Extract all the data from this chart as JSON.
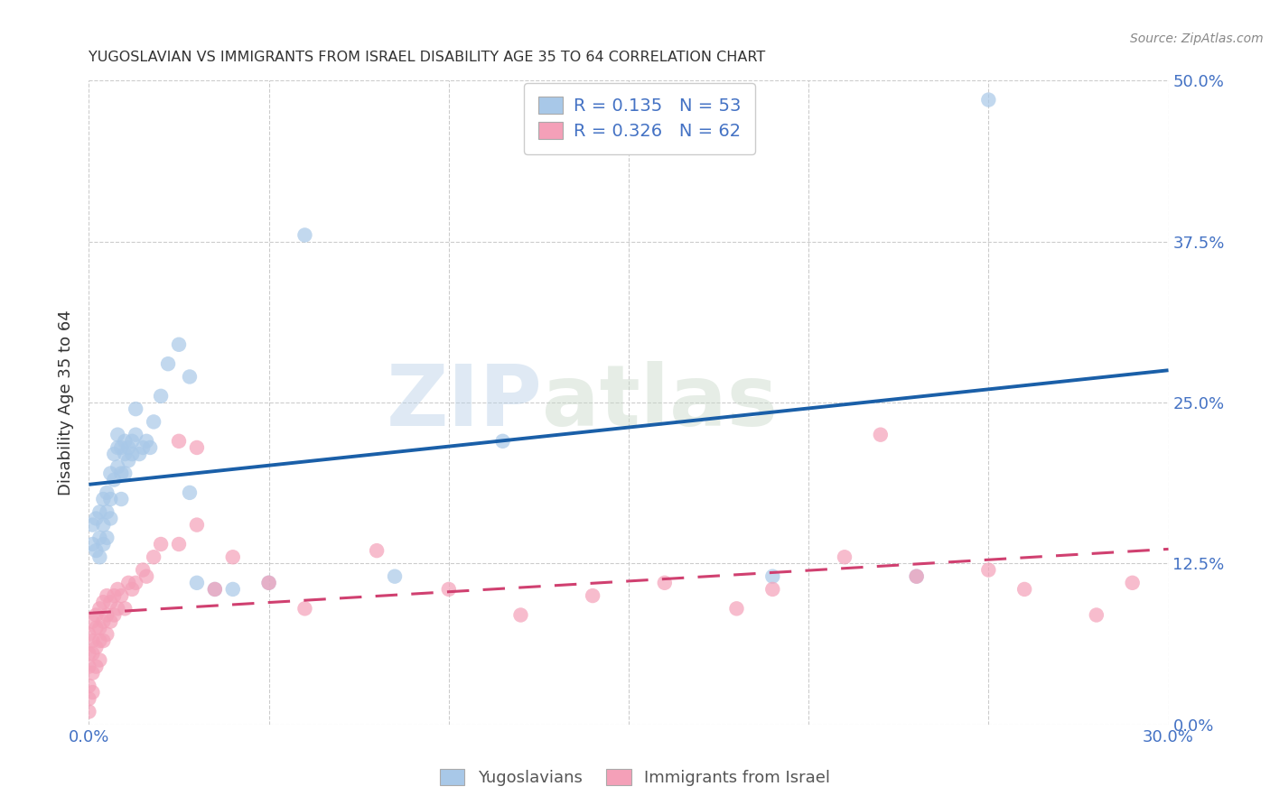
{
  "title": "YUGOSLAVIAN VS IMMIGRANTS FROM ISRAEL DISABILITY AGE 35 TO 64 CORRELATION CHART",
  "source": "Source: ZipAtlas.com",
  "ylabel_label": "Disability Age 35 to 64",
  "xlim": [
    0.0,
    0.3
  ],
  "ylim": [
    0.0,
    0.5
  ],
  "legend_label1": "Yugoslavians",
  "legend_label2": "Immigrants from Israel",
  "R1": 0.135,
  "N1": 53,
  "R2": 0.326,
  "N2": 62,
  "color_blue": "#a8c8e8",
  "color_pink": "#f4a0b8",
  "line_blue": "#1a5fa8",
  "line_pink": "#d04070",
  "watermark_left": "ZIP",
  "watermark_right": "atlas",
  "yugoslav_x": [
    0.001,
    0.001,
    0.002,
    0.002,
    0.003,
    0.003,
    0.003,
    0.004,
    0.004,
    0.004,
    0.005,
    0.005,
    0.005,
    0.006,
    0.006,
    0.006,
    0.007,
    0.007,
    0.008,
    0.008,
    0.008,
    0.009,
    0.009,
    0.009,
    0.01,
    0.01,
    0.01,
    0.011,
    0.011,
    0.012,
    0.012,
    0.013,
    0.013,
    0.014,
    0.015,
    0.016,
    0.017,
    0.018,
    0.02,
    0.022,
    0.025,
    0.028,
    0.06,
    0.085,
    0.115,
    0.19,
    0.23,
    0.25,
    0.028,
    0.04,
    0.05,
    0.03,
    0.035
  ],
  "yugoslav_y": [
    0.155,
    0.14,
    0.16,
    0.135,
    0.165,
    0.145,
    0.13,
    0.175,
    0.155,
    0.14,
    0.18,
    0.165,
    0.145,
    0.195,
    0.175,
    0.16,
    0.21,
    0.19,
    0.225,
    0.215,
    0.2,
    0.215,
    0.195,
    0.175,
    0.22,
    0.21,
    0.195,
    0.215,
    0.205,
    0.22,
    0.21,
    0.245,
    0.225,
    0.21,
    0.215,
    0.22,
    0.215,
    0.235,
    0.255,
    0.28,
    0.295,
    0.27,
    0.38,
    0.115,
    0.22,
    0.115,
    0.115,
    0.485,
    0.18,
    0.105,
    0.11,
    0.11,
    0.105
  ],
  "israel_x": [
    0.0,
    0.0,
    0.0,
    0.0,
    0.0,
    0.0,
    0.001,
    0.001,
    0.001,
    0.001,
    0.001,
    0.002,
    0.002,
    0.002,
    0.002,
    0.003,
    0.003,
    0.003,
    0.003,
    0.004,
    0.004,
    0.004,
    0.005,
    0.005,
    0.005,
    0.006,
    0.006,
    0.007,
    0.007,
    0.008,
    0.008,
    0.009,
    0.01,
    0.011,
    0.012,
    0.013,
    0.015,
    0.016,
    0.018,
    0.02,
    0.025,
    0.03,
    0.03,
    0.04,
    0.05,
    0.06,
    0.08,
    0.1,
    0.12,
    0.14,
    0.16,
    0.18,
    0.19,
    0.21,
    0.22,
    0.23,
    0.25,
    0.26,
    0.28,
    0.29,
    0.025,
    0.035
  ],
  "israel_y": [
    0.07,
    0.055,
    0.045,
    0.03,
    0.02,
    0.01,
    0.08,
    0.065,
    0.055,
    0.04,
    0.025,
    0.085,
    0.075,
    0.06,
    0.045,
    0.09,
    0.075,
    0.065,
    0.05,
    0.095,
    0.08,
    0.065,
    0.1,
    0.085,
    0.07,
    0.095,
    0.08,
    0.1,
    0.085,
    0.105,
    0.09,
    0.1,
    0.09,
    0.11,
    0.105,
    0.11,
    0.12,
    0.115,
    0.13,
    0.14,
    0.14,
    0.215,
    0.155,
    0.13,
    0.11,
    0.09,
    0.135,
    0.105,
    0.085,
    0.1,
    0.11,
    0.09,
    0.105,
    0.13,
    0.225,
    0.115,
    0.12,
    0.105,
    0.085,
    0.11,
    0.22,
    0.105
  ]
}
